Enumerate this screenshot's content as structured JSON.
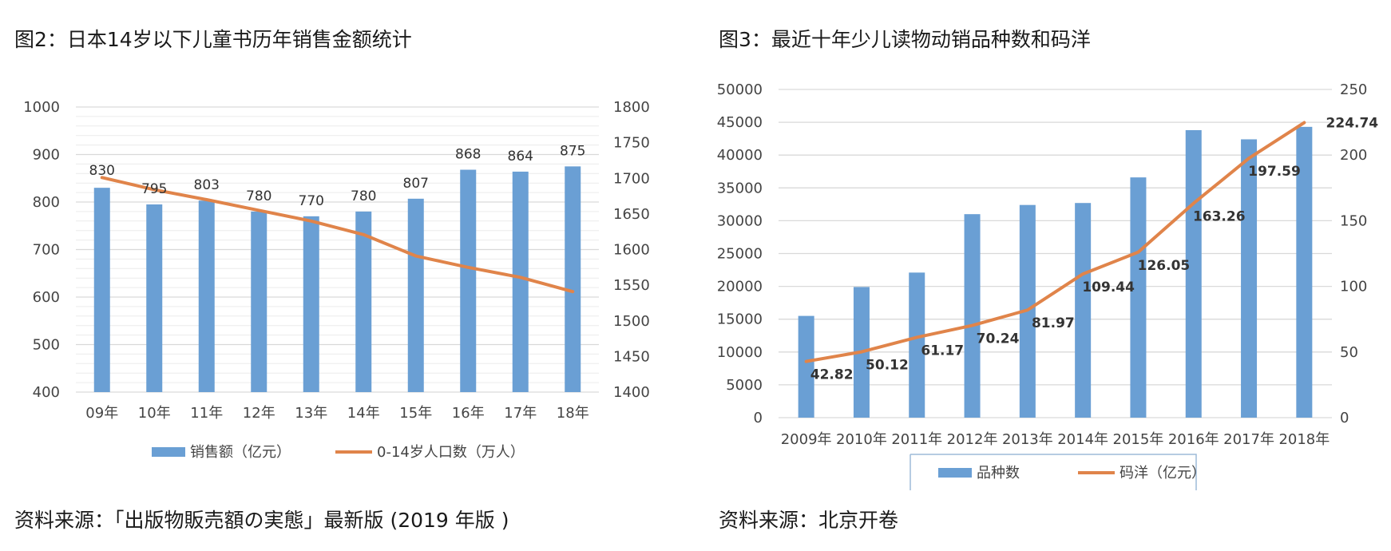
{
  "left_panel": {
    "title": "图2：日本14岁以下儿童书历年销售金额统计",
    "source": "资料来源：「出版物販売額の実態」最新版 (2019 年版 )"
  },
  "right_panel": {
    "title": "图3：最近十年少儿读物动销品种数和码洋",
    "source": "资料来源：北京开卷"
  },
  "colors": {
    "bar": "#6a9fd4",
    "line": "#e0844a",
    "grid": "#d9d9d9",
    "legend_border": "#9dbbd8"
  },
  "chart_data": [
    {
      "type": "bar",
      "title": "图2：日本14岁以下儿童书历年销售金额统计",
      "categories": [
        "09年",
        "10年",
        "11年",
        "12年",
        "13年",
        "14年",
        "15年",
        "16年",
        "17年",
        "18年"
      ],
      "series": [
        {
          "name": "销售额（亿元）",
          "type": "bar",
          "axis": "left",
          "values": [
            830,
            795,
            803,
            780,
            770,
            780,
            807,
            868,
            864,
            875
          ]
        },
        {
          "name": "0-14岁人口数（万人）",
          "type": "line",
          "axis": "right",
          "values": [
            1701,
            1684,
            1670,
            1655,
            1640,
            1621,
            1591,
            1575,
            1561,
            1541
          ]
        }
      ],
      "ylim": [
        400,
        1000
      ],
      "yticks": [
        400,
        500,
        600,
        700,
        800,
        900,
        1000
      ],
      "y2lim": [
        1400,
        1800
      ],
      "y2ticks": [
        1400,
        1450,
        1500,
        1550,
        1600,
        1650,
        1700,
        1750,
        1800
      ],
      "data_labels": [
        "830",
        "795",
        "803",
        "780",
        "770",
        "780",
        "807",
        "868",
        "864",
        "875"
      ],
      "legend_position": "bottom"
    },
    {
      "type": "bar",
      "title": "图3：最近十年少儿读物动销品种数和码洋",
      "categories": [
        "2009年",
        "2010年",
        "2011年",
        "2012年",
        "2013年",
        "2014年",
        "2015年",
        "2016年",
        "2017年",
        "2018年"
      ],
      "series": [
        {
          "name": "品种数",
          "type": "bar",
          "axis": "left",
          "values": [
            15500,
            19900,
            22100,
            31000,
            32400,
            32700,
            36600,
            43800,
            42400,
            44300
          ]
        },
        {
          "name": "码洋（亿元）",
          "type": "line",
          "axis": "right",
          "values": [
            42.82,
            50.12,
            61.17,
            70.24,
            81.97,
            109.44,
            126.05,
            163.26,
            197.59,
            224.74
          ]
        }
      ],
      "ylim": [
        0,
        50000
      ],
      "yticks": [
        0,
        5000,
        10000,
        15000,
        20000,
        25000,
        30000,
        35000,
        40000,
        45000,
        50000
      ],
      "y2lim": [
        0,
        250
      ],
      "y2ticks": [
        0,
        50,
        100,
        150,
        200,
        250
      ],
      "data_labels": [
        "42.82",
        "50.12",
        "61.17",
        "70.24",
        "81.97",
        "109.44",
        "126.05",
        "163.26",
        "197.59",
        "224.74"
      ],
      "legend_position": "bottom"
    }
  ]
}
